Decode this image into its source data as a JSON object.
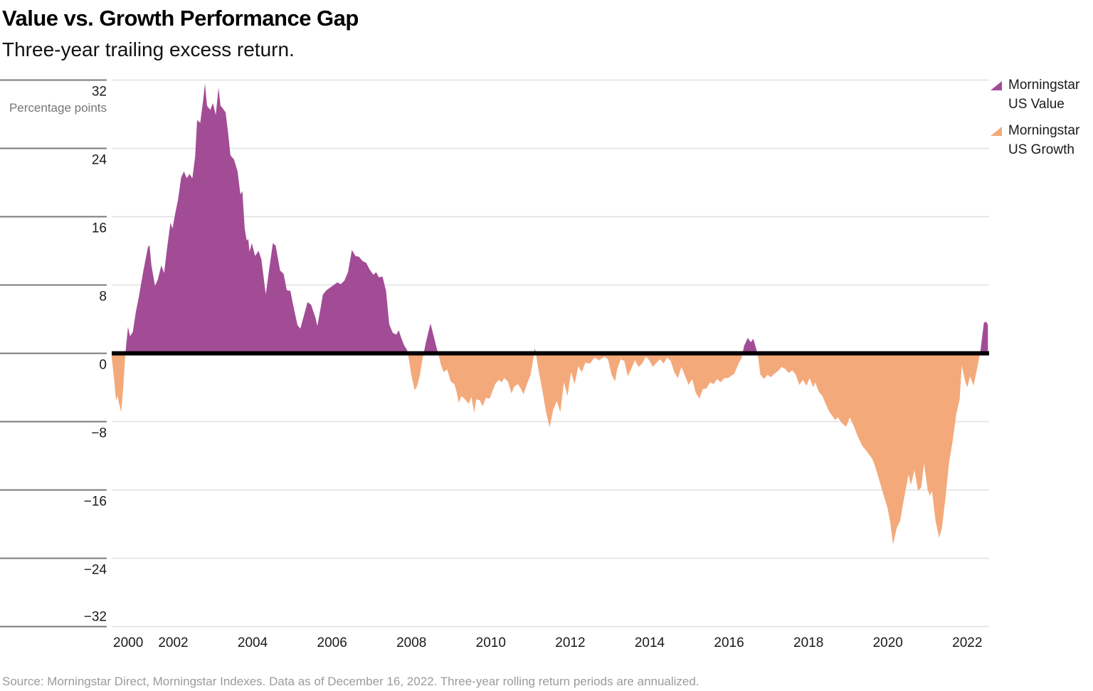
{
  "header": {
    "title": "Value vs. Growth Performance Gap",
    "subtitle": "Three-year trailing excess return."
  },
  "axis": {
    "unit_label": "Percentage points"
  },
  "legend": {
    "value": {
      "label": "Morningstar US Value",
      "line1": "Morningstar",
      "line2": "US Value",
      "color": "#A24C96"
    },
    "growth": {
      "label": "Morningstar US Growth",
      "line1": "Morningstar",
      "line2": "US Growth",
      "color": "#F4A97A"
    }
  },
  "footer": {
    "source": "Source: Morningstar Direct, Morningstar Indexes. Data as of December 16, 2022. Three-year rolling return periods are annualized."
  },
  "colors": {
    "value_fill": "#A24C96",
    "growth_fill": "#F4A97A",
    "zero_line": "#000000",
    "grid_plot": "#E0E0E0",
    "grid_axis": "#7A7A7A",
    "tick_text": "#1A1A1A",
    "muted_text": "#757575",
    "source_text": "#9B9B9B"
  },
  "chart_data": {
    "type": "area",
    "title": "Value vs. Growth Performance Gap",
    "subtitle": "Three-year trailing excess return.",
    "ylabel": "Percentage points",
    "xlabel": "",
    "series_name": "Morningstar US Value minus US Growth, three-year trailing excess return (annualized, percentage points)",
    "legend_entries": [
      "Morningstar US Value",
      "Morningstar US Growth"
    ],
    "legend_position": "top-right",
    "fill_positive": "#A24C96",
    "fill_negative": "#F4A97A",
    "grid": "horizontal",
    "zero_line": true,
    "ylim": [
      -32,
      32
    ],
    "xlim": [
      2000.45,
      2022.55
    ],
    "y_ticks": [
      32,
      24,
      16,
      8,
      0,
      -8,
      -16,
      -24,
      -32
    ],
    "x_ticks": [
      2000,
      2002,
      2004,
      2006,
      2008,
      2010,
      2012,
      2014,
      2016,
      2018,
      2020,
      2022
    ],
    "points": [
      [
        2000.45,
        -0.5
      ],
      [
        2000.51,
        -3.0
      ],
      [
        2000.56,
        -5.5
      ],
      [
        2000.6,
        -5.0
      ],
      [
        2000.63,
        -5.8
      ],
      [
        2000.69,
        -6.9
      ],
      [
        2000.74,
        -4.0
      ],
      [
        2000.79,
        -0.2
      ],
      [
        2000.82,
        1.2
      ],
      [
        2000.86,
        3.1
      ],
      [
        2000.91,
        2.0
      ],
      [
        2000.98,
        2.5
      ],
      [
        2001.06,
        4.9
      ],
      [
        2001.13,
        6.5
      ],
      [
        2001.24,
        9.5
      ],
      [
        2001.36,
        12.4
      ],
      [
        2001.4,
        12.7
      ],
      [
        2001.45,
        10.3
      ],
      [
        2001.54,
        7.9
      ],
      [
        2001.61,
        8.6
      ],
      [
        2001.7,
        10.3
      ],
      [
        2001.77,
        9.4
      ],
      [
        2001.84,
        12.2
      ],
      [
        2001.93,
        15.3
      ],
      [
        2001.98,
        14.6
      ],
      [
        2002.05,
        16.4
      ],
      [
        2002.12,
        18.0
      ],
      [
        2002.2,
        20.6
      ],
      [
        2002.27,
        21.3
      ],
      [
        2002.34,
        20.5
      ],
      [
        2002.41,
        21.0
      ],
      [
        2002.48,
        20.5
      ],
      [
        2002.55,
        23.0
      ],
      [
        2002.6,
        27.3
      ],
      [
        2002.68,
        27.0
      ],
      [
        2002.75,
        29.5
      ],
      [
        2002.8,
        31.6
      ],
      [
        2002.85,
        29.0
      ],
      [
        2002.93,
        28.5
      ],
      [
        2003.0,
        29.3
      ],
      [
        2003.07,
        27.9
      ],
      [
        2003.14,
        31.1
      ],
      [
        2003.19,
        29.0
      ],
      [
        2003.26,
        28.6
      ],
      [
        2003.32,
        28.2
      ],
      [
        2003.39,
        25.5
      ],
      [
        2003.44,
        23.2
      ],
      [
        2003.53,
        22.7
      ],
      [
        2003.62,
        21.3
      ],
      [
        2003.69,
        18.6
      ],
      [
        2003.74,
        19.0
      ],
      [
        2003.8,
        14.6
      ],
      [
        2003.85,
        13.2
      ],
      [
        2003.89,
        13.4
      ],
      [
        2003.92,
        11.9
      ],
      [
        2003.98,
        12.9
      ],
      [
        2004.06,
        11.4
      ],
      [
        2004.15,
        12.0
      ],
      [
        2004.22,
        11.0
      ],
      [
        2004.33,
        6.9
      ],
      [
        2004.42,
        10.0
      ],
      [
        2004.51,
        12.9
      ],
      [
        2004.58,
        12.6
      ],
      [
        2004.69,
        9.7
      ],
      [
        2004.78,
        9.3
      ],
      [
        2004.86,
        7.4
      ],
      [
        2004.95,
        7.3
      ],
      [
        2005.04,
        5.2
      ],
      [
        2005.13,
        3.3
      ],
      [
        2005.2,
        2.9
      ],
      [
        2005.29,
        4.4
      ],
      [
        2005.38,
        6.0
      ],
      [
        2005.47,
        5.7
      ],
      [
        2005.58,
        4.2
      ],
      [
        2005.63,
        3.2
      ],
      [
        2005.7,
        5.0
      ],
      [
        2005.77,
        6.9
      ],
      [
        2005.86,
        7.4
      ],
      [
        2005.95,
        7.7
      ],
      [
        2006.04,
        8.0
      ],
      [
        2006.13,
        8.3
      ],
      [
        2006.22,
        8.1
      ],
      [
        2006.31,
        8.5
      ],
      [
        2006.4,
        9.5
      ],
      [
        2006.5,
        12.1
      ],
      [
        2006.59,
        11.4
      ],
      [
        2006.68,
        11.3
      ],
      [
        2006.77,
        10.8
      ],
      [
        2006.86,
        10.6
      ],
      [
        2006.95,
        9.8
      ],
      [
        2007.04,
        9.2
      ],
      [
        2007.11,
        9.5
      ],
      [
        2007.18,
        8.9
      ],
      [
        2007.27,
        9.0
      ],
      [
        2007.36,
        7.3
      ],
      [
        2007.44,
        3.4
      ],
      [
        2007.53,
        2.4
      ],
      [
        2007.62,
        2.2
      ],
      [
        2007.68,
        2.7
      ],
      [
        2007.75,
        1.7
      ],
      [
        2007.82,
        0.9
      ],
      [
        2007.89,
        0.4
      ],
      [
        2007.92,
        -0.3
      ],
      [
        2008.0,
        -2.6
      ],
      [
        2008.08,
        -4.3
      ],
      [
        2008.14,
        -3.9
      ],
      [
        2008.21,
        -2.6
      ],
      [
        2008.28,
        -0.6
      ],
      [
        2008.35,
        1.0
      ],
      [
        2008.42,
        2.4
      ],
      [
        2008.48,
        3.5
      ],
      [
        2008.55,
        2.2
      ],
      [
        2008.62,
        0.9
      ],
      [
        2008.69,
        -0.3
      ],
      [
        2008.74,
        -1.3
      ],
      [
        2008.81,
        -2.2
      ],
      [
        2008.9,
        -1.9
      ],
      [
        2008.99,
        -3.3
      ],
      [
        2009.08,
        -3.6
      ],
      [
        2009.13,
        -4.4
      ],
      [
        2009.19,
        -5.8
      ],
      [
        2009.26,
        -5.0
      ],
      [
        2009.35,
        -5.4
      ],
      [
        2009.44,
        -5.9
      ],
      [
        2009.51,
        -5.1
      ],
      [
        2009.58,
        -7.0
      ],
      [
        2009.63,
        -5.4
      ],
      [
        2009.72,
        -5.5
      ],
      [
        2009.79,
        -6.2
      ],
      [
        2009.88,
        -5.2
      ],
      [
        2009.97,
        -5.3
      ],
      [
        2010.02,
        -4.7
      ],
      [
        2010.11,
        -3.6
      ],
      [
        2010.2,
        -3.1
      ],
      [
        2010.27,
        -3.4
      ],
      [
        2010.34,
        -2.9
      ],
      [
        2010.43,
        -3.3
      ],
      [
        2010.52,
        -4.7
      ],
      [
        2010.59,
        -3.9
      ],
      [
        2010.68,
        -3.6
      ],
      [
        2010.75,
        -4.1
      ],
      [
        2010.82,
        -4.8
      ],
      [
        2010.91,
        -3.6
      ],
      [
        2011.0,
        -2.5
      ],
      [
        2011.05,
        -1.2
      ],
      [
        2011.11,
        0.6
      ],
      [
        2011.16,
        -0.8
      ],
      [
        2011.21,
        -2.2
      ],
      [
        2011.3,
        -4.4
      ],
      [
        2011.39,
        -6.9
      ],
      [
        2011.48,
        -8.7
      ],
      [
        2011.57,
        -6.6
      ],
      [
        2011.66,
        -5.6
      ],
      [
        2011.75,
        -6.9
      ],
      [
        2011.84,
        -3.4
      ],
      [
        2011.93,
        -5.0
      ],
      [
        2012.02,
        -2.2
      ],
      [
        2012.11,
        -3.6
      ],
      [
        2012.2,
        -1.5
      ],
      [
        2012.29,
        -2.2
      ],
      [
        2012.38,
        -1.1
      ],
      [
        2012.5,
        -1.2
      ],
      [
        2012.61,
        -0.5
      ],
      [
        2012.73,
        -0.8
      ],
      [
        2012.86,
        -0.4
      ],
      [
        2012.95,
        -0.7
      ],
      [
        2013.04,
        -2.5
      ],
      [
        2013.13,
        -3.3
      ],
      [
        2013.18,
        -1.9
      ],
      [
        2013.27,
        -0.7
      ],
      [
        2013.36,
        -0.9
      ],
      [
        2013.45,
        -2.7
      ],
      [
        2013.54,
        -1.8
      ],
      [
        2013.63,
        -0.8
      ],
      [
        2013.72,
        -1.6
      ],
      [
        2013.81,
        -1.2
      ],
      [
        2013.9,
        -0.4
      ],
      [
        2013.99,
        -0.8
      ],
      [
        2014.08,
        -1.6
      ],
      [
        2014.17,
        -1.1
      ],
      [
        2014.26,
        -0.7
      ],
      [
        2014.35,
        -1.2
      ],
      [
        2014.44,
        -0.5
      ],
      [
        2014.53,
        -0.9
      ],
      [
        2014.62,
        -2.2
      ],
      [
        2014.71,
        -2.9
      ],
      [
        2014.8,
        -1.6
      ],
      [
        2014.89,
        -2.6
      ],
      [
        2014.98,
        -3.7
      ],
      [
        2015.07,
        -3.0
      ],
      [
        2015.16,
        -4.6
      ],
      [
        2015.25,
        -5.3
      ],
      [
        2015.34,
        -4.2
      ],
      [
        2015.43,
        -4.1
      ],
      [
        2015.52,
        -3.4
      ],
      [
        2015.61,
        -3.6
      ],
      [
        2015.7,
        -3.0
      ],
      [
        2015.79,
        -3.4
      ],
      [
        2015.88,
        -2.9
      ],
      [
        2015.97,
        -2.9
      ],
      [
        2016.13,
        -2.4
      ],
      [
        2016.25,
        -1.1
      ],
      [
        2016.31,
        -0.6
      ],
      [
        2016.38,
        0.9
      ],
      [
        2016.47,
        1.8
      ],
      [
        2016.55,
        1.3
      ],
      [
        2016.61,
        1.7
      ],
      [
        2016.68,
        0.6
      ],
      [
        2016.73,
        -0.4
      ],
      [
        2016.79,
        -2.5
      ],
      [
        2016.88,
        -3.0
      ],
      [
        2016.97,
        -2.5
      ],
      [
        2017.05,
        -2.8
      ],
      [
        2017.14,
        -2.4
      ],
      [
        2017.25,
        -2.0
      ],
      [
        2017.32,
        -1.6
      ],
      [
        2017.41,
        -1.8
      ],
      [
        2017.5,
        -2.3
      ],
      [
        2017.59,
        -2.0
      ],
      [
        2017.68,
        -2.5
      ],
      [
        2017.77,
        -3.7
      ],
      [
        2017.86,
        -3.1
      ],
      [
        2017.95,
        -3.8
      ],
      [
        2018.03,
        -2.9
      ],
      [
        2018.12,
        -4.0
      ],
      [
        2018.17,
        -3.4
      ],
      [
        2018.26,
        -4.5
      ],
      [
        2018.35,
        -5.0
      ],
      [
        2018.44,
        -6.0
      ],
      [
        2018.53,
        -6.9
      ],
      [
        2018.6,
        -7.3
      ],
      [
        2018.67,
        -7.8
      ],
      [
        2018.74,
        -7.5
      ],
      [
        2018.85,
        -8.2
      ],
      [
        2018.95,
        -8.6
      ],
      [
        2019.04,
        -7.5
      ],
      [
        2019.15,
        -8.6
      ],
      [
        2019.24,
        -9.7
      ],
      [
        2019.35,
        -10.8
      ],
      [
        2019.47,
        -11.5
      ],
      [
        2019.6,
        -12.3
      ],
      [
        2019.67,
        -13.1
      ],
      [
        2019.78,
        -14.8
      ],
      [
        2019.88,
        -16.4
      ],
      [
        2019.99,
        -18.1
      ],
      [
        2020.06,
        -19.8
      ],
      [
        2020.13,
        -22.4
      ],
      [
        2020.22,
        -20.5
      ],
      [
        2020.31,
        -19.6
      ],
      [
        2020.4,
        -17.2
      ],
      [
        2020.52,
        -14.2
      ],
      [
        2020.58,
        -15.4
      ],
      [
        2020.67,
        -13.7
      ],
      [
        2020.76,
        -16.1
      ],
      [
        2020.84,
        -15.7
      ],
      [
        2020.91,
        -12.9
      ],
      [
        2021.0,
        -15.9
      ],
      [
        2021.06,
        -16.7
      ],
      [
        2021.11,
        -16.1
      ],
      [
        2021.2,
        -19.6
      ],
      [
        2021.29,
        -21.6
      ],
      [
        2021.36,
        -20.5
      ],
      [
        2021.45,
        -17.0
      ],
      [
        2021.54,
        -12.8
      ],
      [
        2021.63,
        -10.3
      ],
      [
        2021.72,
        -7.2
      ],
      [
        2021.81,
        -5.3
      ],
      [
        2021.86,
        -1.4
      ],
      [
        2021.95,
        -3.3
      ],
      [
        2022.0,
        -4.0
      ],
      [
        2022.07,
        -2.7
      ],
      [
        2022.16,
        -3.8
      ],
      [
        2022.25,
        -1.7
      ],
      [
        2022.33,
        0.2
      ],
      [
        2022.42,
        3.6
      ],
      [
        2022.48,
        3.7
      ],
      [
        2022.52,
        3.3
      ]
    ]
  }
}
